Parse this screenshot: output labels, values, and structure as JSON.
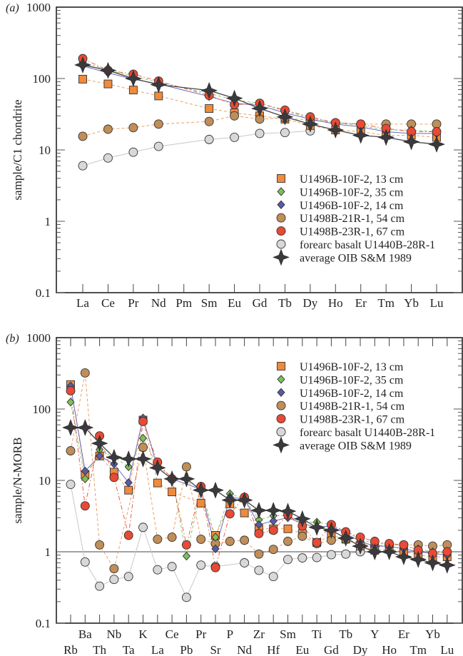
{
  "chart_data": [
    {
      "type": "line",
      "panel_label": "(a)",
      "ylabel": "sample/C1 chondrite",
      "yscale": "log",
      "ylim": [
        0.1,
        1000
      ],
      "yticks": [
        "0.1",
        "1",
        "10",
        "100",
        "1000"
      ],
      "legend_position": "center-right",
      "categories": [
        "La",
        "Ce",
        "Pr",
        "Nd",
        "Pm",
        "Sm",
        "Eu",
        "Gd",
        "Tb",
        "Dy",
        "Ho",
        "Er",
        "Tm",
        "Yb",
        "Lu"
      ],
      "series": [
        {
          "name": "U1496B-10F-2, 13 cm",
          "marker": "square",
          "color": "#f08a3c",
          "line": "dashed",
          "line_color": "#f0a060",
          "values": [
            98,
            84,
            69,
            57,
            null,
            38,
            33,
            30,
            27,
            22,
            19,
            18,
            16,
            16,
            15
          ]
        },
        {
          "name": "U1496B-10F-2, 35 cm",
          "marker": "diamond",
          "color": "#7cc05a",
          "line": "dashed",
          "line_color": "#8cc870",
          "values": [
            170,
            130,
            108,
            88,
            null,
            62,
            50,
            45,
            35,
            28,
            24,
            22,
            19,
            19,
            18
          ]
        },
        {
          "name": "U1496B-10F-2, 14 cm",
          "marker": "diamond",
          "color": "#5a5aa8",
          "line": "solid",
          "line_color": "#6a6ac0",
          "values": [
            150,
            120,
            98,
            84,
            null,
            56,
            45,
            42,
            33,
            27,
            23,
            21,
            18,
            17,
            17
          ]
        },
        {
          "name": "U1498B-21R-1, 54 cm",
          "marker": "circle",
          "color": "#c08e58",
          "line": "dashed",
          "line_color": "#e8a068",
          "values": [
            15.5,
            19.5,
            20.5,
            23,
            null,
            25,
            30,
            27,
            28,
            26,
            24,
            23,
            23,
            23,
            23
          ]
        },
        {
          "name": "U1498B-23R-1, 67 cm",
          "marker": "circle",
          "color": "#e84a35",
          "line": "dashdot",
          "line_color": "#e86048",
          "values": [
            190,
            130,
            115,
            92,
            null,
            58,
            43,
            45,
            36,
            29,
            24,
            23,
            20,
            18,
            18
          ]
        },
        {
          "name": "forearc basalt U1440B-28R-1",
          "marker": "circle",
          "color": "#d8d8d8",
          "line": "solid",
          "line_color": "#c8c8c8",
          "values": [
            6,
            7.7,
            9.3,
            11.2,
            null,
            14,
            15,
            17,
            17.5,
            18.5,
            null,
            null,
            null,
            null,
            null
          ]
        },
        {
          "name": "average OIB S&M 1989",
          "marker": "star",
          "color": "#3a3a3e",
          "line": "solid",
          "line_color": "#444",
          "values": [
            155,
            130,
            100,
            82,
            null,
            68,
            53,
            38,
            29,
            23,
            19,
            16,
            15,
            13,
            12
          ]
        }
      ]
    },
    {
      "type": "line",
      "panel_label": "(b)",
      "ylabel": "sample/N-MORB",
      "yscale": "log",
      "ylim": [
        0.1,
        1000
      ],
      "yticks": [
        "0.1",
        "1",
        "10",
        "100",
        "1000"
      ],
      "reference_line": 1,
      "legend_position": "top-right",
      "categories": [
        "Rb",
        "Ba",
        "Th",
        "Nb",
        "Ta",
        "K",
        "La",
        "Ce",
        "Pb",
        "Pr",
        "Sr",
        "P",
        "Nd",
        "Zr",
        "Hf",
        "Sm",
        "Eu",
        "Ti",
        "Gd",
        "Tb",
        "Dy",
        "Y",
        "Ho",
        "Er",
        "Tm",
        "Yb",
        "Lu"
      ],
      "series": [
        {
          "name": "U1496B-10F-2, 13 cm",
          "marker": "square",
          "color": "#f08a3c",
          "line": "dashed",
          "line_color": "#f0a060",
          "values": [
            220,
            12,
            22,
            13,
            7.3,
            70,
            9.2,
            6.9,
            null,
            4.8,
            1.7,
            4.7,
            3.5,
            2.1,
            2.1,
            2.1,
            1.8,
            1.35,
            1.7,
            1.5,
            1.2,
            1.05,
            1.1,
            1.0,
            0.9,
            0.85,
            0.85
          ]
        },
        {
          "name": "U1496B-10F-2, 35 cm",
          "marker": "diamond",
          "color": "#7cc05a",
          "line": "dashed",
          "line_color": "#8cc870",
          "values": [
            125,
            10.5,
            27,
            21,
            15.5,
            39,
            16,
            11,
            0.87,
            7.5,
            1.6,
            6.5,
            5.5,
            2.8,
            3.2,
            3.2,
            2.6,
            2.6,
            2.4,
            1.9,
            1.5,
            1.3,
            1.3,
            1.2,
            1.1,
            1.0,
            1.0
          ]
        },
        {
          "name": "U1496B-10F-2, 14 cm",
          "marker": "diamond",
          "color": "#5a5aa8",
          "line": "solid",
          "line_color": "#6a6ac0",
          "values": [
            210,
            13.5,
            22,
            17,
            9.3,
            75,
            15,
            10.5,
            null,
            7.5,
            1.1,
            5.8,
            5.5,
            2.4,
            2.7,
            3.0,
            2.5,
            2.2,
            2.3,
            1.8,
            1.4,
            1.2,
            1.2,
            1.1,
            1.0,
            0.95,
            0.9
          ]
        },
        {
          "name": "U1498B-21R-1, 54 cm",
          "marker": "circle",
          "color": "#c08e58",
          "line": "dashed",
          "line_color": "#e8a068",
          "values": [
            26,
            320,
            1.25,
            0.58,
            null,
            29,
            1.5,
            1.6,
            15.5,
            1.5,
            1.3,
            1.4,
            1.45,
            0.93,
            1.08,
            1.4,
            1.65,
            1.3,
            1.45,
            1.5,
            1.3,
            1.2,
            1.25,
            1.25,
            1.25,
            1.2,
            1.25
          ]
        },
        {
          "name": "U1498B-23R-1, 67 cm",
          "marker": "circle",
          "color": "#e84a35",
          "line": "dashdot",
          "line_color": "#e86048",
          "values": [
            180,
            4.4,
            42,
            11,
            1.7,
            67,
            18,
            10.5,
            1.25,
            8.2,
            0.6,
            3.4,
            5.8,
            1.8,
            2.0,
            3.3,
            2.3,
            1.35,
            2.4,
            1.9,
            1.6,
            1.4,
            1.3,
            1.25,
            1.05,
            0.95,
            1.0
          ]
        },
        {
          "name": "forearc basalt U1440B-28R-1",
          "marker": "circle",
          "color": "#d8d8d8",
          "line": "solid",
          "line_color": "#c8c8c8",
          "values": [
            8.8,
            0.72,
            0.33,
            0.41,
            0.45,
            2.2,
            0.56,
            0.62,
            0.23,
            0.65,
            0.62,
            null,
            0.7,
            0.55,
            0.45,
            0.78,
            0.82,
            0.83,
            0.91,
            0.93,
            1.0,
            null,
            null,
            null,
            null,
            null,
            null
          ]
        },
        {
          "name": "average OIB S&M 1989",
          "marker": "star",
          "color": "#3a3a3e",
          "line": "solid",
          "line_color": "#444",
          "values": [
            55,
            55,
            33,
            21,
            20,
            20,
            15,
            10.5,
            10.5,
            7.3,
            7.3,
            5.3,
            5.3,
            3.8,
            3.8,
            3.7,
            2.9,
            2.2,
            2.0,
            1.55,
            1.2,
            1.0,
            1.0,
            0.85,
            0.78,
            0.7,
            0.65
          ]
        }
      ]
    }
  ]
}
